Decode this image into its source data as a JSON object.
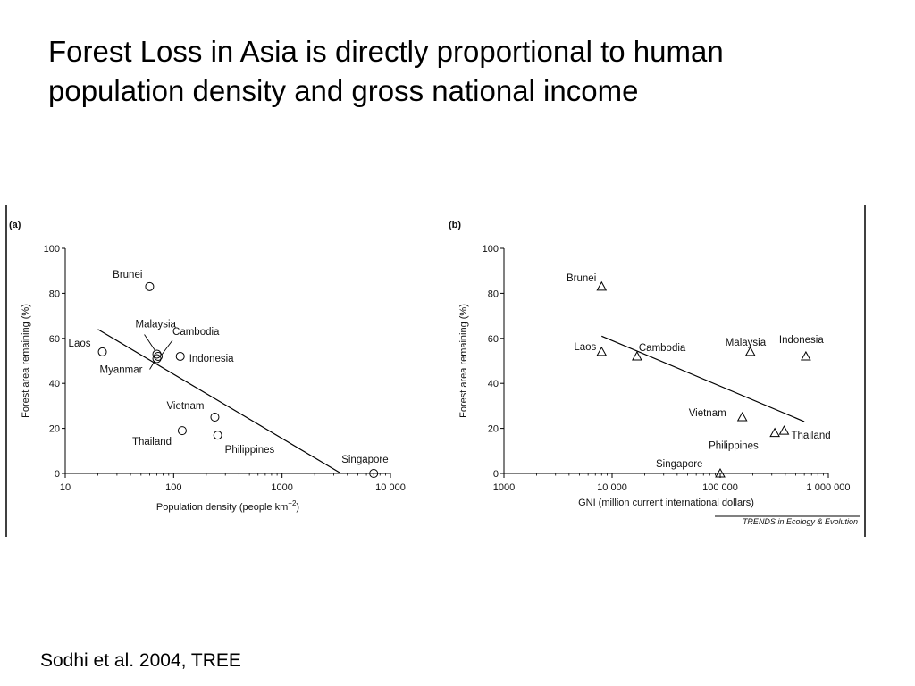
{
  "title": {
    "line1": "Forest Loss in Asia is directly proportional to human",
    "line2": "population density and gross national income"
  },
  "citation": "Sodhi et al. 2004, TREE",
  "credit": "TRENDS in Ecology & Evolution",
  "chart_data": [
    {
      "type": "scatter",
      "panel": "(a)",
      "xscale": "log",
      "xlim": [
        10,
        10000
      ],
      "ylim": [
        0,
        100
      ],
      "xticks": [
        10,
        100,
        1000,
        10000
      ],
      "xtick_labels": [
        "10",
        "100",
        "1000",
        "10 000"
      ],
      "yticks": [
        0,
        20,
        40,
        60,
        80,
        100
      ],
      "ytick_labels": [
        "0",
        "20",
        "40",
        "60",
        "80",
        "100"
      ],
      "xlabel": "Population density (people km",
      "xlabel_sup": "−2",
      "xlabel_end": ")",
      "ylabel": "Forest area remaining (%)",
      "marker": "circle",
      "points": [
        {
          "label": "Brunei",
          "x": 60,
          "y": 83
        },
        {
          "label": "Malaysia",
          "x": 70,
          "y": 53
        },
        {
          "label": "Cambodia",
          "x": 72,
          "y": 52
        },
        {
          "label": "Myanmar",
          "x": 70,
          "y": 51
        },
        {
          "label": "Laos",
          "x": 22,
          "y": 54
        },
        {
          "label": "Indonesia",
          "x": 115,
          "y": 52
        },
        {
          "label": "Vietnam",
          "x": 240,
          "y": 25
        },
        {
          "label": "Thailand",
          "x": 120,
          "y": 19
        },
        {
          "label": "Philippines",
          "x": 255,
          "y": 17
        },
        {
          "label": "Singapore",
          "x": 7000,
          "y": 0
        }
      ],
      "trend": [
        [
          20,
          64
        ],
        [
          3500,
          0
        ]
      ]
    },
    {
      "type": "scatter",
      "panel": "(b)",
      "xscale": "log",
      "xlim": [
        1000,
        1000000
      ],
      "ylim": [
        0,
        100
      ],
      "xticks": [
        1000,
        10000,
        100000,
        1000000
      ],
      "xtick_labels": [
        "1000",
        "10 000",
        "100 000",
        "1 000 000"
      ],
      "yticks": [
        0,
        20,
        40,
        60,
        80,
        100
      ],
      "ytick_labels": [
        "0",
        "20",
        "40",
        "60",
        "80",
        "100"
      ],
      "xlabel": "GNI (million current international dollars)",
      "ylabel": "Forest area remaining (%)",
      "marker": "triangle",
      "points": [
        {
          "label": "Brunei",
          "x": 8000,
          "y": 83
        },
        {
          "label": "Laos",
          "x": 8000,
          "y": 54
        },
        {
          "label": "Cambodia",
          "x": 17000,
          "y": 52
        },
        {
          "label": "Malaysia",
          "x": 190000,
          "y": 54
        },
        {
          "label": "Indonesia",
          "x": 620000,
          "y": 52
        },
        {
          "label": "Vietnam",
          "x": 160000,
          "y": 25
        },
        {
          "label": "Philippines",
          "x": 320000,
          "y": 18
        },
        {
          "label": "Thailand",
          "x": 390000,
          "y": 19
        },
        {
          "label": "Singapore",
          "x": 100000,
          "y": 0
        }
      ],
      "trend": [
        [
          8000,
          61
        ],
        [
          600000,
          23
        ]
      ]
    }
  ]
}
